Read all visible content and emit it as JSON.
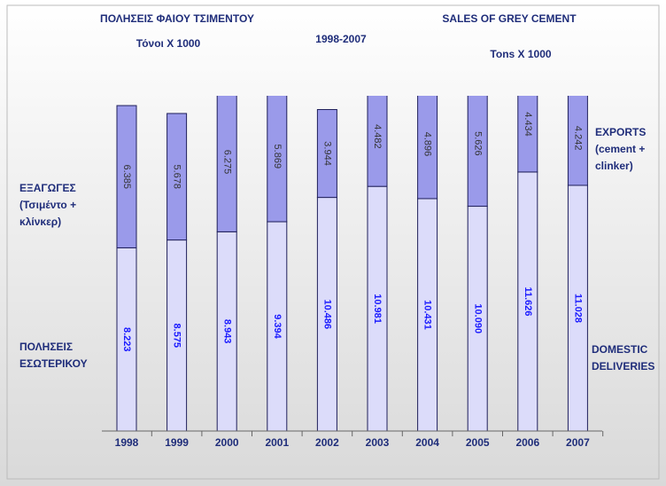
{
  "chart_data": {
    "type": "stacked_bar",
    "title_greek": "ΠΟΛΗΣΕΙΣ ΦΑΙΟΥ ΤΣΙΜΕΝΤΟΥ",
    "subtitle_greek": "Τόνοι Χ 1000",
    "period": "1998-2007",
    "title_english": "SALES OF GREY CEMENT",
    "subtitle_english": "Tons X 1000",
    "categories": [
      "1998",
      "1999",
      "2000",
      "2001",
      "2002",
      "2003",
      "2004",
      "2005",
      "2006",
      "2007"
    ],
    "series": [
      {
        "label_greek": [
          "ΠΟΛΗΣΕΙΣ",
          "ΕΣΩΤΕΡΙΚΟΥ"
        ],
        "label_english": [
          "DOMESTIC",
          "DELIVERIES"
        ],
        "color": "#dcdcfa",
        "values": [
          8.223,
          8.575,
          8.943,
          9.394,
          10.486,
          10.981,
          10.431,
          10.09,
          11.626,
          11.028
        ],
        "value_labels": [
          "8.223",
          "8.575",
          "8.943",
          "9.394",
          "10.486",
          "10.981",
          "10.431",
          "10.090",
          "11.626",
          "11.028"
        ]
      },
      {
        "label_greek": [
          "ΕΞΑΓΩΓΕΣ",
          "(Τσιμέντο +",
          "κλίνκερ)"
        ],
        "label_english": [
          "EXPORTS",
          "(cement +",
          "clinker)"
        ],
        "color": "#9a9aea",
        "values": [
          6.385,
          5.678,
          6.275,
          5.869,
          3.944,
          4.482,
          4.896,
          5.626,
          4.434,
          4.242
        ],
        "value_labels": [
          "6.385",
          "5.678",
          "6.275",
          "5.869",
          "3.944",
          "4.482",
          "4.896",
          "5.626",
          "4.434",
          "4.242"
        ]
      }
    ]
  }
}
